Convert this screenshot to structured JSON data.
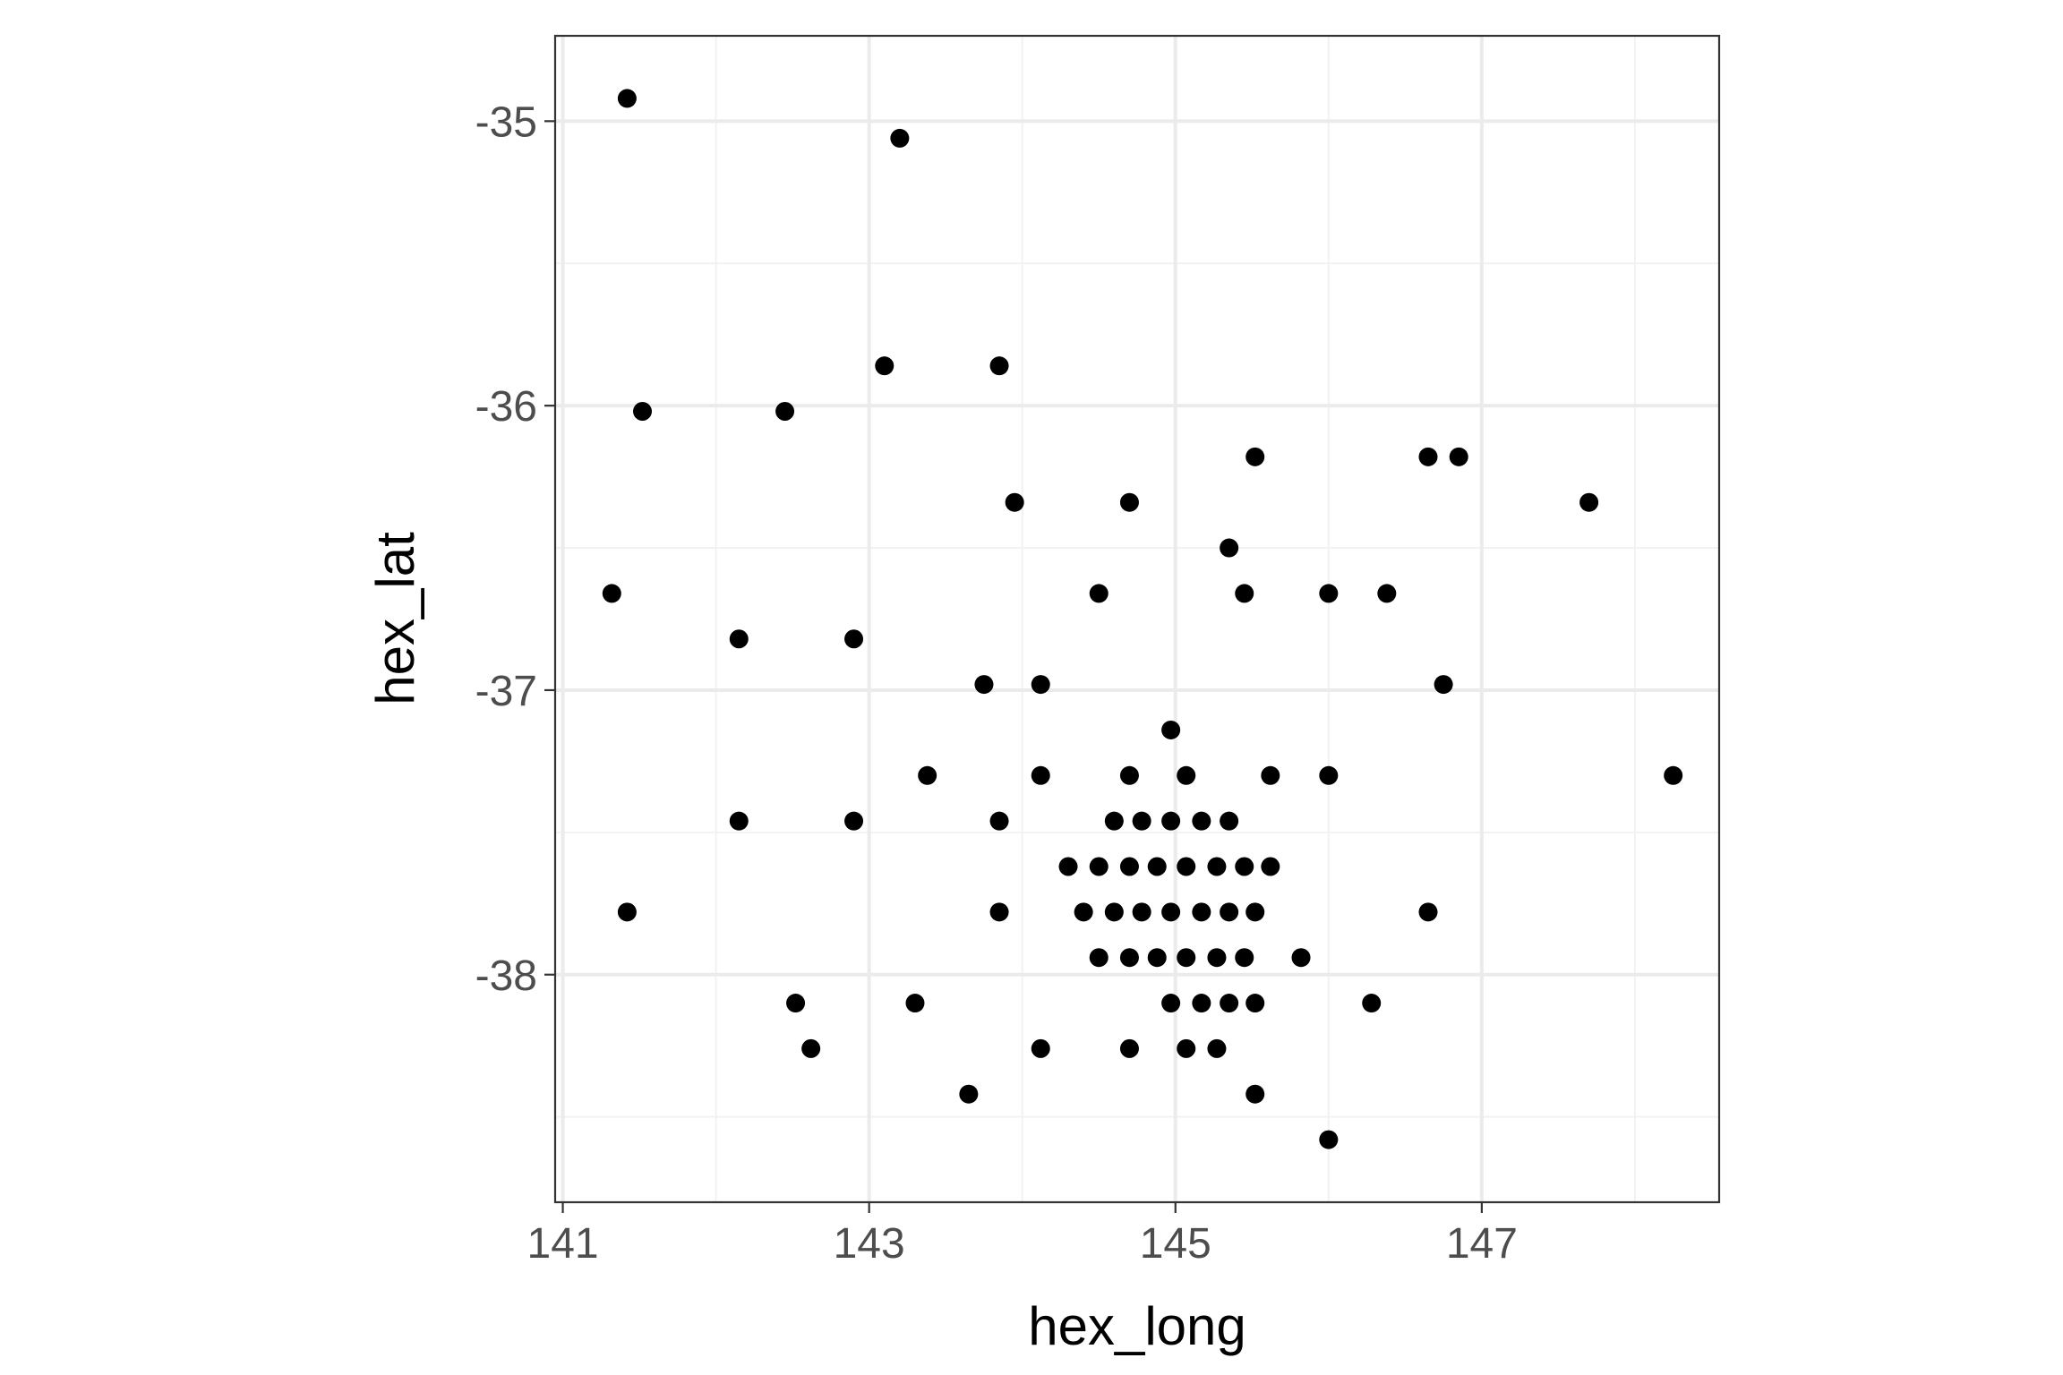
{
  "chart_data": {
    "type": "scatter",
    "xlabel": "hex_long",
    "ylabel": "hex_lat",
    "xlim": [
      140.95,
      148.55
    ],
    "ylim": [
      -38.8,
      -34.7
    ],
    "x_ticks": [
      141,
      143,
      145,
      147
    ],
    "x_tick_labels": [
      "141",
      "143",
      "145",
      "147"
    ],
    "y_ticks": [
      -35,
      -36,
      -37,
      -38
    ],
    "y_tick_labels": [
      "-35",
      "-36",
      "-37",
      "-38"
    ],
    "x_minor_grid": [
      142,
      144,
      146,
      148
    ],
    "y_minor_grid": [
      -35.5,
      -36.5,
      -37.5,
      -38.5
    ],
    "grid": true,
    "legend": "none",
    "theme": "bw",
    "colors": {
      "point": "#000000",
      "grid_major": "#ebebeb",
      "grid_minor": "#f2f2f2",
      "panel_border": "#333333",
      "tick_label": "#4d4d4d"
    },
    "points": [
      [
        141.42,
        -34.92
      ],
      [
        143.2,
        -35.06
      ],
      [
        143.1,
        -35.86
      ],
      [
        143.85,
        -35.86
      ],
      [
        141.52,
        -36.02
      ],
      [
        142.45,
        -36.02
      ],
      [
        145.52,
        -36.18
      ],
      [
        146.65,
        -36.18
      ],
      [
        146.85,
        -36.18
      ],
      [
        143.95,
        -36.34
      ],
      [
        144.7,
        -36.34
      ],
      [
        147.7,
        -36.34
      ],
      [
        145.35,
        -36.5
      ],
      [
        141.32,
        -36.66
      ],
      [
        144.5,
        -36.66
      ],
      [
        145.45,
        -36.66
      ],
      [
        146.0,
        -36.66
      ],
      [
        146.38,
        -36.66
      ],
      [
        142.15,
        -36.82
      ],
      [
        142.9,
        -36.82
      ],
      [
        143.75,
        -36.98
      ],
      [
        144.12,
        -36.98
      ],
      [
        146.75,
        -36.98
      ],
      [
        144.97,
        -37.14
      ],
      [
        143.38,
        -37.3
      ],
      [
        144.12,
        -37.3
      ],
      [
        144.7,
        -37.3
      ],
      [
        145.07,
        -37.3
      ],
      [
        145.62,
        -37.3
      ],
      [
        146.0,
        -37.3
      ],
      [
        148.25,
        -37.3
      ],
      [
        142.15,
        -37.46
      ],
      [
        142.9,
        -37.46
      ],
      [
        143.85,
        -37.46
      ],
      [
        144.6,
        -37.46
      ],
      [
        144.78,
        -37.46
      ],
      [
        144.97,
        -37.46
      ],
      [
        145.17,
        -37.46
      ],
      [
        145.35,
        -37.46
      ],
      [
        144.3,
        -37.62
      ],
      [
        144.5,
        -37.62
      ],
      [
        144.7,
        -37.62
      ],
      [
        144.88,
        -37.62
      ],
      [
        145.07,
        -37.62
      ],
      [
        145.27,
        -37.62
      ],
      [
        145.45,
        -37.62
      ],
      [
        145.62,
        -37.62
      ],
      [
        141.42,
        -37.78
      ],
      [
        143.85,
        -37.78
      ],
      [
        144.4,
        -37.78
      ],
      [
        144.6,
        -37.78
      ],
      [
        144.78,
        -37.78
      ],
      [
        144.97,
        -37.78
      ],
      [
        145.17,
        -37.78
      ],
      [
        145.35,
        -37.78
      ],
      [
        145.52,
        -37.78
      ],
      [
        146.65,
        -37.78
      ],
      [
        144.5,
        -37.94
      ],
      [
        144.7,
        -37.94
      ],
      [
        144.88,
        -37.94
      ],
      [
        145.07,
        -37.94
      ],
      [
        145.27,
        -37.94
      ],
      [
        145.45,
        -37.94
      ],
      [
        145.82,
        -37.94
      ],
      [
        142.52,
        -38.1
      ],
      [
        143.3,
        -38.1
      ],
      [
        144.97,
        -38.1
      ],
      [
        145.17,
        -38.1
      ],
      [
        145.35,
        -38.1
      ],
      [
        145.52,
        -38.1
      ],
      [
        146.28,
        -38.1
      ],
      [
        142.62,
        -38.26
      ],
      [
        144.12,
        -38.26
      ],
      [
        144.7,
        -38.26
      ],
      [
        145.07,
        -38.26
      ],
      [
        145.27,
        -38.26
      ],
      [
        143.65,
        -38.42
      ],
      [
        145.52,
        -38.42
      ],
      [
        146.0,
        -38.58
      ]
    ]
  }
}
